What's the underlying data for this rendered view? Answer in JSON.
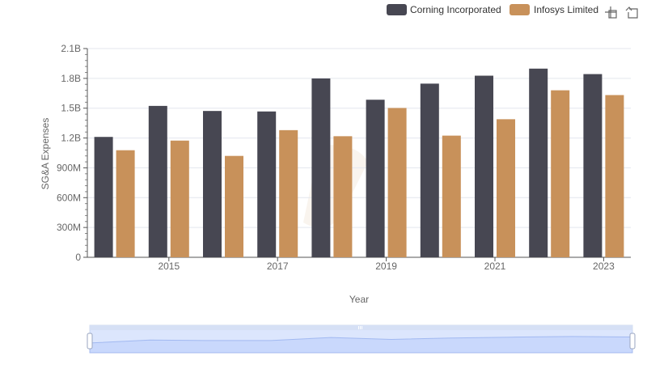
{
  "chart_data": {
    "type": "bar",
    "title": "",
    "xlabel": "Year",
    "ylabel": "SG&A Expenses",
    "x": [
      2014,
      2015,
      2016,
      2017,
      2018,
      2019,
      2020,
      2021,
      2022,
      2023
    ],
    "x_tick_labels": [
      "2015",
      "2017",
      "2019",
      "2021",
      "2023"
    ],
    "x_tick_values": [
      2015,
      2017,
      2019,
      2021,
      2023
    ],
    "ylim": [
      0,
      2100000000
    ],
    "y_ticks": [
      0,
      300000000,
      600000000,
      900000000,
      1200000000,
      1500000000,
      1800000000,
      2100000000
    ],
    "y_tick_labels": [
      "0",
      "300M",
      "600M",
      "900M",
      "1.2B",
      "1.5B",
      "1.8B",
      "2.1B"
    ],
    "grid": true,
    "legend_position": "top-right",
    "series": [
      {
        "name": "Corning Incorporated",
        "color": "#474752",
        "values": [
          1211000000,
          1523000000,
          1472000000,
          1467000000,
          1799000000,
          1585000000,
          1747000000,
          1827000000,
          1898000000,
          1843000000
        ]
      },
      {
        "name": "Infosys Limited",
        "color": "#c8915a",
        "values": [
          1077000000,
          1174000000,
          1020000000,
          1279000000,
          1218000000,
          1502000000,
          1224000000,
          1389000000,
          1680000000,
          1632000000
        ]
      }
    ]
  },
  "toolbar": {
    "zoom_icon": "zoom-select-icon",
    "reset_icon": "zoom-reset-icon"
  },
  "slider": {
    "accent": "#dbe4fb",
    "line": "#a9bdee"
  }
}
